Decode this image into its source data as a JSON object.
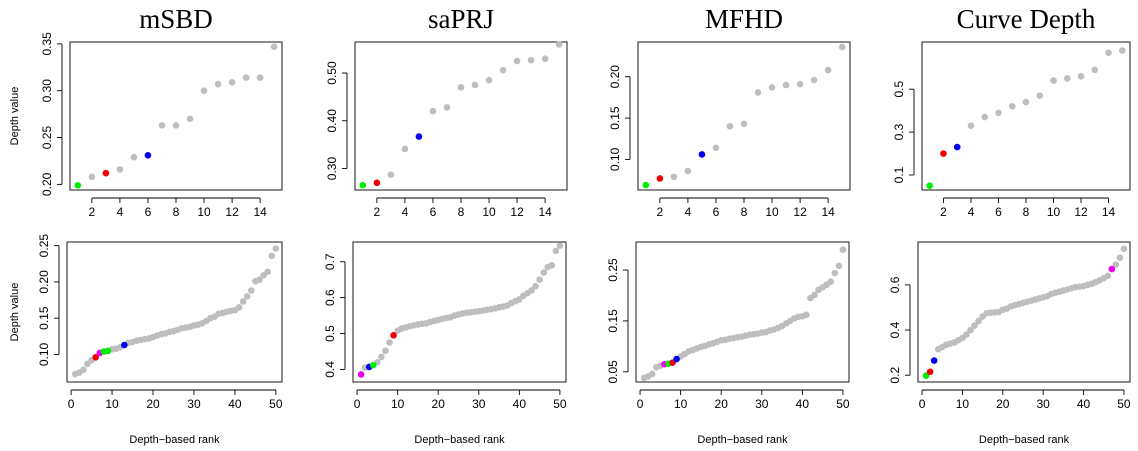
{
  "chart_data": [
    {
      "type": "scatter",
      "title": "mSBD",
      "ylabel": "Depth value",
      "xlabel": "",
      "xlim": [
        0.44,
        15.56
      ],
      "ylim": [
        0.194,
        0.352
      ],
      "xticks": [
        2,
        4,
        6,
        8,
        10,
        12,
        14
      ],
      "yticks": [
        0.2,
        0.25,
        0.3,
        0.35
      ],
      "ytick_labels": [
        "0.20",
        "0.25",
        "0.30",
        "0.35"
      ],
      "grid": false,
      "x": [
        1,
        2,
        3,
        4,
        5,
        6,
        7,
        8,
        9,
        10,
        11,
        12,
        13,
        14,
        15
      ],
      "y": [
        0.199,
        0.208,
        0.212,
        0.216,
        0.229,
        0.231,
        0.263,
        0.263,
        0.27,
        0.3,
        0.307,
        0.309,
        0.314,
        0.314,
        0.347
      ],
      "colors": [
        "#00ee00",
        "#bebebe",
        "#ee0000",
        "#bebebe",
        "#bebebe",
        "#0000ee",
        "#bebebe",
        "#bebebe",
        "#bebebe",
        "#bebebe",
        "#bebebe",
        "#bebebe",
        "#bebebe",
        "#bebebe",
        "#bebebe"
      ]
    },
    {
      "type": "scatter",
      "title": "saPRJ",
      "ylabel": "",
      "xlabel": "",
      "xlim": [
        0.44,
        15.56
      ],
      "ylim": [
        0.255,
        0.565
      ],
      "xticks": [
        2,
        4,
        6,
        8,
        10,
        12,
        14
      ],
      "yticks": [
        0.3,
        0.4,
        0.5
      ],
      "ytick_labels": [
        "0.30",
        "0.40",
        "0.50"
      ],
      "grid": false,
      "x": [
        1,
        2,
        3,
        4,
        5,
        6,
        7,
        8,
        9,
        10,
        11,
        12,
        13,
        14,
        15
      ],
      "y": [
        0.265,
        0.27,
        0.287,
        0.341,
        0.367,
        0.42,
        0.428,
        0.47,
        0.475,
        0.485,
        0.506,
        0.525,
        0.527,
        0.53,
        0.56
      ],
      "colors": [
        "#00ee00",
        "#ee0000",
        "#bebebe",
        "#bebebe",
        "#0000ee",
        "#bebebe",
        "#bebebe",
        "#bebebe",
        "#bebebe",
        "#bebebe",
        "#bebebe",
        "#bebebe",
        "#bebebe",
        "#bebebe",
        "#bebebe"
      ]
    },
    {
      "type": "scatter",
      "title": "MFHD",
      "ylabel": "",
      "xlabel": "",
      "xlim": [
        0.44,
        15.56
      ],
      "ylim": [
        0.063,
        0.242
      ],
      "xticks": [
        2,
        4,
        6,
        8,
        10,
        12,
        14
      ],
      "yticks": [
        0.1,
        0.15,
        0.2
      ],
      "ytick_labels": [
        "0.10",
        "0.15",
        "0.20"
      ],
      "grid": false,
      "x": [
        1,
        2,
        3,
        4,
        5,
        6,
        7,
        8,
        9,
        10,
        11,
        12,
        13,
        14,
        15
      ],
      "y": [
        0.069,
        0.077,
        0.079,
        0.086,
        0.106,
        0.114,
        0.14,
        0.143,
        0.181,
        0.187,
        0.19,
        0.191,
        0.196,
        0.208,
        0.236
      ],
      "colors": [
        "#00ee00",
        "#ee0000",
        "#bebebe",
        "#bebebe",
        "#0000ee",
        "#bebebe",
        "#bebebe",
        "#bebebe",
        "#bebebe",
        "#bebebe",
        "#bebebe",
        "#bebebe",
        "#bebebe",
        "#bebebe",
        "#bebebe"
      ]
    },
    {
      "type": "scatter",
      "title": "Curve Depth",
      "ylabel": "",
      "xlabel": "",
      "xlim": [
        0.44,
        15.56
      ],
      "ylim": [
        0.03,
        0.72
      ],
      "xticks": [
        2,
        4,
        6,
        8,
        10,
        12,
        14
      ],
      "yticks": [
        0.1,
        0.3,
        0.5
      ],
      "ytick_labels": [
        "0.1",
        "0.3",
        "0.5"
      ],
      "grid": false,
      "x": [
        1,
        2,
        3,
        4,
        5,
        6,
        7,
        8,
        9,
        10,
        11,
        12,
        13,
        14,
        15
      ],
      "y": [
        0.05,
        0.2,
        0.23,
        0.33,
        0.37,
        0.39,
        0.42,
        0.44,
        0.47,
        0.54,
        0.55,
        0.56,
        0.59,
        0.67,
        0.68
      ],
      "colors": [
        "#00ee00",
        "#ee0000",
        "#0000ee",
        "#bebebe",
        "#bebebe",
        "#bebebe",
        "#bebebe",
        "#bebebe",
        "#bebebe",
        "#bebebe",
        "#bebebe",
        "#bebebe",
        "#bebebe",
        "#bebebe",
        "#bebebe"
      ]
    },
    {
      "type": "scatter",
      "title": "",
      "ylabel": "Depth value",
      "xlabel": "Depth−based rank",
      "xlim": [
        -1,
        51.5
      ],
      "ylim": [
        0.062,
        0.255
      ],
      "xticks": [
        0,
        10,
        20,
        30,
        40,
        50
      ],
      "yticks": [
        0.1,
        0.15,
        0.2,
        0.25
      ],
      "ytick_labels": [
        "0.10",
        "0.15",
        "0.20",
        "0.25"
      ],
      "grid": false,
      "x": [
        1,
        2,
        3,
        4,
        5,
        6,
        7,
        8,
        9,
        10,
        11,
        12,
        13,
        14,
        15,
        16,
        17,
        18,
        19,
        20,
        21,
        22,
        23,
        24,
        25,
        26,
        27,
        28,
        29,
        30,
        31,
        32,
        33,
        34,
        35,
        36,
        37,
        38,
        39,
        40,
        41,
        42,
        43,
        44,
        45,
        46,
        47,
        48,
        49,
        50
      ],
      "y": [
        0.073,
        0.075,
        0.079,
        0.087,
        0.092,
        0.096,
        0.102,
        0.104,
        0.105,
        0.107,
        0.108,
        0.11,
        0.113,
        0.116,
        0.117,
        0.119,
        0.12,
        0.121,
        0.122,
        0.124,
        0.126,
        0.128,
        0.129,
        0.131,
        0.132,
        0.134,
        0.136,
        0.137,
        0.138,
        0.14,
        0.141,
        0.143,
        0.146,
        0.15,
        0.152,
        0.156,
        0.157,
        0.159,
        0.16,
        0.161,
        0.165,
        0.173,
        0.18,
        0.188,
        0.201,
        0.203,
        0.209,
        0.214,
        0.236,
        0.246
      ],
      "colors": [
        "#bebebe",
        "#bebebe",
        "#bebebe",
        "#bebebe",
        "#bebebe",
        "#ee0000",
        "#ee00ee",
        "#00ee00",
        "#00ee00",
        "#bebebe",
        "#bebebe",
        "#bebebe",
        "#0000ee",
        "#bebebe",
        "#bebebe",
        "#bebebe",
        "#bebebe",
        "#bebebe",
        "#bebebe",
        "#bebebe",
        "#bebebe",
        "#bebebe",
        "#bebebe",
        "#bebebe",
        "#bebebe",
        "#bebebe",
        "#bebebe",
        "#bebebe",
        "#bebebe",
        "#bebebe",
        "#bebebe",
        "#bebebe",
        "#bebebe",
        "#bebebe",
        "#bebebe",
        "#bebebe",
        "#bebebe",
        "#bebebe",
        "#bebebe",
        "#bebebe",
        "#bebebe",
        "#bebebe",
        "#bebebe",
        "#bebebe",
        "#bebebe",
        "#bebebe",
        "#bebebe",
        "#bebebe",
        "#bebebe",
        "#bebebe"
      ]
    },
    {
      "type": "scatter",
      "title": "",
      "ylabel": "",
      "xlabel": "Depth−based rank",
      "xlim": [
        -1,
        51.5
      ],
      "ylim": [
        0.365,
        0.755
      ],
      "xticks": [
        0,
        10,
        20,
        30,
        40,
        50
      ],
      "yticks": [
        0.4,
        0.5,
        0.6,
        0.7
      ],
      "ytick_labels": [
        "0.4",
        "0.5",
        "0.6",
        "0.7"
      ],
      "grid": false,
      "x": [
        1,
        2,
        3,
        4,
        5,
        6,
        7,
        8,
        9,
        10,
        11,
        12,
        13,
        14,
        15,
        16,
        17,
        18,
        19,
        20,
        21,
        22,
        23,
        24,
        25,
        26,
        27,
        28,
        29,
        30,
        31,
        32,
        33,
        34,
        35,
        36,
        37,
        38,
        39,
        40,
        41,
        42,
        43,
        44,
        45,
        46,
        47,
        48,
        49,
        50
      ],
      "y": [
        0.386,
        0.405,
        0.407,
        0.412,
        0.42,
        0.435,
        0.452,
        0.475,
        0.495,
        0.508,
        0.514,
        0.517,
        0.52,
        0.523,
        0.525,
        0.527,
        0.528,
        0.532,
        0.535,
        0.538,
        0.541,
        0.543,
        0.545,
        0.55,
        0.553,
        0.556,
        0.558,
        0.559,
        0.561,
        0.562,
        0.564,
        0.566,
        0.568,
        0.57,
        0.573,
        0.575,
        0.578,
        0.585,
        0.59,
        0.595,
        0.605,
        0.612,
        0.62,
        0.632,
        0.65,
        0.67,
        0.685,
        0.69,
        0.73,
        0.745
      ],
      "colors": [
        "#ee00ee",
        "#bebebe",
        "#0000ee",
        "#00ee00",
        "#bebebe",
        "#bebebe",
        "#bebebe",
        "#bebebe",
        "#ee0000",
        "#bebebe",
        "#bebebe",
        "#bebebe",
        "#bebebe",
        "#bebebe",
        "#bebebe",
        "#bebebe",
        "#bebebe",
        "#bebebe",
        "#bebebe",
        "#bebebe",
        "#bebebe",
        "#bebebe",
        "#bebebe",
        "#bebebe",
        "#bebebe",
        "#bebebe",
        "#bebebe",
        "#bebebe",
        "#bebebe",
        "#bebebe",
        "#bebebe",
        "#bebebe",
        "#bebebe",
        "#bebebe",
        "#bebebe",
        "#bebebe",
        "#bebebe",
        "#bebebe",
        "#bebebe",
        "#bebebe",
        "#bebebe",
        "#bebebe",
        "#bebebe",
        "#bebebe",
        "#bebebe",
        "#bebebe",
        "#bebebe",
        "#bebebe",
        "#bebebe",
        "#bebebe"
      ]
    },
    {
      "type": "scatter",
      "title": "",
      "ylabel": "",
      "xlabel": "Depth−based rank",
      "xlim": [
        -1,
        51.5
      ],
      "ylim": [
        0.03,
        0.305
      ],
      "xticks": [
        0,
        10,
        20,
        30,
        40,
        50
      ],
      "yticks": [
        0.05,
        0.15,
        0.25
      ],
      "ytick_labels": [
        "0.05",
        "0.15",
        "0.25"
      ],
      "grid": false,
      "x": [
        1,
        2,
        3,
        4,
        5,
        6,
        7,
        8,
        9,
        10,
        11,
        12,
        13,
        14,
        15,
        16,
        17,
        18,
        19,
        20,
        21,
        22,
        23,
        24,
        25,
        26,
        27,
        28,
        29,
        30,
        31,
        32,
        33,
        34,
        35,
        36,
        37,
        38,
        39,
        40,
        41,
        42,
        43,
        44,
        45,
        46,
        47,
        48,
        49,
        50
      ],
      "y": [
        0.038,
        0.041,
        0.046,
        0.059,
        0.062,
        0.065,
        0.066,
        0.068,
        0.075,
        0.08,
        0.085,
        0.09,
        0.093,
        0.096,
        0.099,
        0.101,
        0.104,
        0.106,
        0.109,
        0.112,
        0.113,
        0.115,
        0.116,
        0.118,
        0.119,
        0.121,
        0.123,
        0.124,
        0.125,
        0.127,
        0.128,
        0.131,
        0.133,
        0.136,
        0.14,
        0.145,
        0.15,
        0.155,
        0.158,
        0.159,
        0.162,
        0.195,
        0.201,
        0.211,
        0.216,
        0.221,
        0.227,
        0.244,
        0.258,
        0.29
      ],
      "colors": [
        "#bebebe",
        "#bebebe",
        "#bebebe",
        "#bebebe",
        "#bebebe",
        "#ee00ee",
        "#00ee00",
        "#ee0000",
        "#0000ee",
        "#bebebe",
        "#bebebe",
        "#bebebe",
        "#bebebe",
        "#bebebe",
        "#bebebe",
        "#bebebe",
        "#bebebe",
        "#bebebe",
        "#bebebe",
        "#bebebe",
        "#bebebe",
        "#bebebe",
        "#bebebe",
        "#bebebe",
        "#bebebe",
        "#bebebe",
        "#bebebe",
        "#bebebe",
        "#bebebe",
        "#bebebe",
        "#bebebe",
        "#bebebe",
        "#bebebe",
        "#bebebe",
        "#bebebe",
        "#bebebe",
        "#bebebe",
        "#bebebe",
        "#bebebe",
        "#bebebe",
        "#bebebe",
        "#bebebe",
        "#bebebe",
        "#bebebe",
        "#bebebe",
        "#bebebe",
        "#bebebe",
        "#bebebe",
        "#bebebe",
        "#bebebe"
      ]
    },
    {
      "type": "scatter",
      "title": "",
      "ylabel": "",
      "xlabel": "Depth−based rank",
      "xlim": [
        -1,
        51.5
      ],
      "ylim": [
        0.17,
        0.79
      ],
      "xticks": [
        0,
        10,
        20,
        30,
        40,
        50
      ],
      "yticks": [
        0.2,
        0.4,
        0.6
      ],
      "ytick_labels": [
        "0.2",
        "0.4",
        "0.6"
      ],
      "grid": false,
      "x": [
        1,
        2,
        3,
        4,
        5,
        6,
        7,
        8,
        9,
        10,
        11,
        12,
        13,
        14,
        15,
        16,
        17,
        18,
        19,
        20,
        21,
        22,
        23,
        24,
        25,
        26,
        27,
        28,
        29,
        30,
        31,
        32,
        33,
        34,
        35,
        36,
        37,
        38,
        39,
        40,
        41,
        42,
        43,
        44,
        45,
        46,
        47,
        48,
        49,
        50
      ],
      "y": [
        0.198,
        0.215,
        0.265,
        0.315,
        0.325,
        0.335,
        0.34,
        0.345,
        0.355,
        0.365,
        0.38,
        0.4,
        0.42,
        0.44,
        0.46,
        0.475,
        0.477,
        0.478,
        0.48,
        0.49,
        0.495,
        0.505,
        0.51,
        0.515,
        0.52,
        0.525,
        0.53,
        0.535,
        0.54,
        0.545,
        0.55,
        0.56,
        0.565,
        0.57,
        0.575,
        0.58,
        0.585,
        0.59,
        0.592,
        0.595,
        0.6,
        0.605,
        0.612,
        0.62,
        0.63,
        0.64,
        0.67,
        0.69,
        0.72,
        0.76
      ],
      "colors": [
        "#00ee00",
        "#ee0000",
        "#0000ee",
        "#bebebe",
        "#bebebe",
        "#bebebe",
        "#bebebe",
        "#bebebe",
        "#bebebe",
        "#bebebe",
        "#bebebe",
        "#bebebe",
        "#bebebe",
        "#bebebe",
        "#bebebe",
        "#bebebe",
        "#bebebe",
        "#bebebe",
        "#bebebe",
        "#bebebe",
        "#bebebe",
        "#bebebe",
        "#bebebe",
        "#bebebe",
        "#bebebe",
        "#bebebe",
        "#bebebe",
        "#bebebe",
        "#bebebe",
        "#bebebe",
        "#bebebe",
        "#bebebe",
        "#bebebe",
        "#bebebe",
        "#bebebe",
        "#bebebe",
        "#bebebe",
        "#bebebe",
        "#bebebe",
        "#bebebe",
        "#bebebe",
        "#bebebe",
        "#bebebe",
        "#bebebe",
        "#bebebe",
        "#bebebe",
        "#ee00ee",
        "#bebebe",
        "#bebebe",
        "#bebebe"
      ]
    }
  ]
}
